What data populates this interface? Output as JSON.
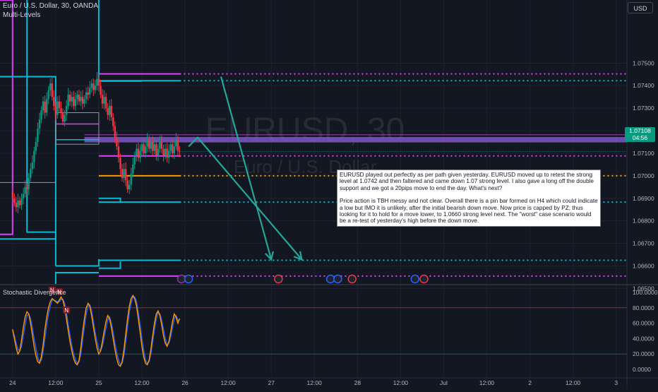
{
  "header": {
    "symbol_title": "Euro / U.S. Dollar, 30, OANDA",
    "indicator": "Multi-Levels",
    "currency": "USD"
  },
  "watermark": {
    "line1": "EURUSD, 30",
    "line2": "Euro / U.S. Dollar"
  },
  "note": {
    "p1": "EURUSD played out perfectly as per path given yesterday. EURUSD moved up to retest the strong level at 1.0742 and then faltered and came down 1.07 strong level. I also gave a long off the double support and we got a 20pips move to end the day. What's next?",
    "p2": "Price action is TBH messy and not clear. Overall there is a pin bar formed on H4 which could indicate a low but IMO it is unlikely, after the initial bearish down move. Now price is capped by PZ; thus looking for it to hold for a move lower, to 1.0660 strong level next. The \"worst\" case scenario would be a re-test of yesterday's high before the down move."
  },
  "last_price": {
    "price": "1.07108",
    "countdown": "04:56",
    "value": 1.07108,
    "color": "#089981"
  },
  "oscillator": {
    "title": "Stochastic Divergence",
    "tick_labels": [
      "100.0000",
      "80.0000",
      "60.0000",
      "40.0000",
      "20.0000",
      "0.0000"
    ],
    "divergence_labels": [
      "N",
      "N",
      "N"
    ]
  },
  "colors": {
    "background": "#131722",
    "up": "#089981",
    "down": "#f23645",
    "magenta": "#e040fb",
    "cyan": "#00bcd4",
    "orange": "#ff9800",
    "purple_zone": "#7e57c2",
    "arrow": "#26a69a",
    "k_line": "#ff9800",
    "d_line": "#2962ff"
  },
  "chart_data": {
    "type": "candlestick",
    "title": "Euro / U.S. Dollar, 30, OANDA",
    "y_axis": {
      "ylim": [
        1.0652,
        1.0778
      ],
      "tick_labels": [
        "1.07500",
        "1.07400",
        "1.07300",
        "1.07200",
        "1.07100",
        "1.07000",
        "1.06900",
        "1.06800",
        "1.06700",
        "1.06600",
        "1.06500"
      ],
      "ticks": [
        1.075,
        1.074,
        1.073,
        1.072,
        1.071,
        1.07,
        1.069,
        1.068,
        1.067,
        1.066,
        1.065
      ]
    },
    "x_axis": {
      "tick_labels": [
        "24",
        "12:00",
        "25",
        "12:00",
        "26",
        "12:00",
        "27",
        "12:00",
        "28",
        "12:00",
        "Jul",
        "12:00",
        "2",
        "12:00",
        "3"
      ],
      "tick_bars": [
        0,
        24,
        48,
        72,
        96,
        120,
        144,
        168,
        192,
        216,
        240,
        264,
        288,
        312,
        336
      ],
      "last_bar": 93,
      "bar_range": [
        -7,
        342
      ]
    },
    "candles_close": [
      1.069,
      1.0688,
      1.0686,
      1.0689,
      1.0687,
      1.069,
      1.0692,
      1.0695,
      1.0694,
      1.0699,
      1.0703,
      1.0706,
      1.0711,
      1.0715,
      1.0721,
      1.0725,
      1.0729,
      1.0733,
      1.0728,
      1.0734,
      1.0738,
      1.0741,
      1.0735,
      1.0731,
      1.0727,
      1.0733,
      1.073,
      1.0728,
      1.0724,
      1.0727,
      1.0731,
      1.0736,
      1.0733,
      1.0735,
      1.0731,
      1.0734,
      1.0736,
      1.0733,
      1.0735,
      1.0732,
      1.0734,
      1.0737,
      1.0736,
      1.0739,
      1.0741,
      1.0738,
      1.074,
      1.0743,
      1.074,
      1.0736,
      1.0732,
      1.0735,
      1.073,
      1.0727,
      1.0731,
      1.0726,
      1.0722,
      1.0717,
      1.0713,
      1.0708,
      1.0703,
      1.0699,
      1.0703,
      1.0698,
      1.0694,
      1.0696,
      1.0701,
      1.0705,
      1.0709,
      1.0712,
      1.0708,
      1.0711,
      1.0714,
      1.071,
      1.0713,
      1.0716,
      1.0712,
      1.0715,
      1.0711,
      1.0714,
      1.0709,
      1.0712,
      1.0715,
      1.0712,
      1.0709,
      1.0712,
      1.0708,
      1.0711,
      1.0714,
      1.071,
      1.0713,
      1.0716,
      1.0711,
      1.07108
    ],
    "open_first": 1.0693,
    "levels": [
      {
        "name": "resistance-1",
        "price": 1.07452,
        "color": "#e040fb",
        "style": "solid-then-dotted"
      },
      {
        "name": "level-1.0742",
        "price": 1.07422,
        "color": "#00bcd4",
        "style": "solid-then-dotted"
      },
      {
        "name": "support-1.0709",
        "price": 1.07088,
        "color": "#e040fb",
        "style": "solid-then-dotted"
      },
      {
        "name": "level-1.0700",
        "price": 1.07,
        "color": "#ff9800",
        "style": "solid-then-dotted"
      },
      {
        "name": "level-1.0688",
        "price": 1.06883,
        "color": "#00bcd4",
        "style": "solid-then-dotted"
      },
      {
        "name": "level-1.0662",
        "price": 1.06625,
        "color": "#00bcd4",
        "style": "solid-then-dotted"
      },
      {
        "name": "level-1.0655",
        "price": 1.06555,
        "color": "#e040fb",
        "style": "solid-then-dotted"
      }
    ],
    "zone": {
      "low": 1.07148,
      "high": 1.07172,
      "color": "#7e57c2"
    },
    "stochastic": {
      "ylim": [
        0,
        100
      ],
      "k": [
        52,
        40,
        28,
        20,
        24,
        38,
        55,
        68,
        75,
        72,
        60,
        45,
        30,
        18,
        10,
        8,
        16,
        32,
        52,
        68,
        80,
        88,
        92,
        90,
        88,
        86,
        90,
        94,
        90,
        80,
        66,
        50,
        36,
        24,
        14,
        8,
        6,
        12,
        28,
        48,
        66,
        80,
        86,
        82,
        70,
        55,
        40,
        28,
        20,
        24,
        36,
        50,
        62,
        70,
        66,
        54,
        40,
        26,
        14,
        6,
        4,
        10,
        26,
        46,
        66,
        82,
        92,
        96,
        92,
        82,
        66,
        48,
        30,
        16,
        8,
        6,
        12,
        26,
        44,
        60,
        72,
        76,
        70,
        58,
        44,
        34,
        30,
        36,
        48,
        62,
        72,
        68,
        60,
        66
      ],
      "d": [
        50,
        44,
        34,
        26,
        24,
        30,
        44,
        58,
        70,
        72,
        66,
        54,
        40,
        28,
        16,
        10,
        12,
        24,
        40,
        58,
        72,
        82,
        90,
        90,
        89,
        88,
        88,
        91,
        91,
        86,
        74,
        58,
        44,
        30,
        20,
        12,
        8,
        10,
        20,
        38,
        56,
        72,
        82,
        84,
        76,
        62,
        48,
        36,
        26,
        24,
        30,
        42,
        54,
        64,
        68,
        60,
        48,
        34,
        22,
        12,
        6,
        8,
        18,
        36,
        56,
        74,
        86,
        94,
        94,
        88,
        74,
        58,
        40,
        24,
        12,
        8,
        10,
        20,
        36,
        52,
        66,
        74,
        72,
        64,
        52,
        40,
        32,
        34,
        42,
        54,
        66,
        70,
        64,
        64
      ]
    }
  }
}
